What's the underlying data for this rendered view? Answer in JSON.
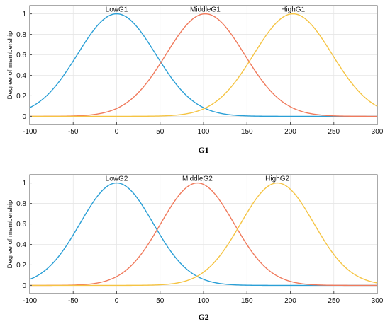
{
  "chart_data": [
    {
      "type": "line",
      "xlabel": "G1",
      "ylabel": "Degree of membership",
      "xlim": [
        -100,
        300
      ],
      "ylim": [
        -0.08,
        1.08
      ],
      "x_ticks": [
        "-100",
        "-50",
        "0",
        "50",
        "100",
        "150",
        "200",
        "250",
        "300"
      ],
      "y_ticks": [
        "0",
        "0.2",
        "0.4",
        "0.6",
        "0.8",
        "1"
      ],
      "grid": true,
      "series": [
        {
          "name": "LowG1",
          "shape": "gaussian",
          "center": 0,
          "sigma": 45,
          "color": "#2a9fd6"
        },
        {
          "name": "MiddleG1",
          "shape": "gaussian",
          "center": 102,
          "sigma": 45,
          "color": "#f07a5c"
        },
        {
          "name": "HighG1",
          "shape": "gaussian",
          "center": 203,
          "sigma": 45,
          "color": "#f5c443"
        }
      ]
    },
    {
      "type": "line",
      "xlabel": "G2",
      "ylabel": "Degree of membership",
      "xlim": [
        -100,
        300
      ],
      "ylim": [
        -0.08,
        1.08
      ],
      "x_ticks": [
        "-100",
        "-50",
        "0",
        "50",
        "100",
        "150",
        "200",
        "250",
        "300"
      ],
      "y_ticks": [
        "0",
        "0.2",
        "0.4",
        "0.6",
        "0.8",
        "1"
      ],
      "grid": true,
      "series": [
        {
          "name": "LowG2",
          "shape": "gaussian",
          "center": 0,
          "sigma": 42,
          "color": "#2a9fd6"
        },
        {
          "name": "MiddleG2",
          "shape": "gaussian",
          "center": 93,
          "sigma": 42,
          "color": "#f07a5c"
        },
        {
          "name": "HighG2",
          "shape": "gaussian",
          "center": 185,
          "sigma": 42,
          "color": "#f5c443"
        }
      ]
    }
  ]
}
